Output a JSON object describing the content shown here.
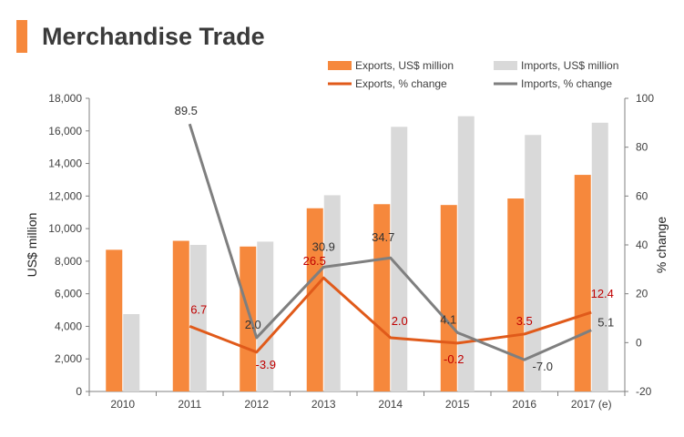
{
  "page": {
    "title": "Merchandise Trade"
  },
  "colors": {
    "accent": "#f6883c",
    "exports_bar": "#f6883c",
    "imports_bar": "#d9d9d9",
    "exports_line": "#e05a1a",
    "imports_line": "#7f7f7f",
    "exports_label": "#c00000",
    "axis": "#808080"
  },
  "chart_data": {
    "type": "bar",
    "title": "",
    "categories": [
      "2010",
      "2011",
      "2012",
      "2013",
      "2014",
      "2015",
      "2016",
      "2017 (e)"
    ],
    "ylabel": "US$ million",
    "ylim": [
      0,
      18000
    ],
    "yticks": [
      0,
      2000,
      4000,
      6000,
      8000,
      10000,
      12000,
      14000,
      16000,
      18000
    ],
    "ytick_labels": [
      "0",
      "2,000",
      "4,000",
      "6,000",
      "8,000",
      "10,000",
      "12,000",
      "14,000",
      "16,000",
      "18,000"
    ],
    "y2label": "% change",
    "y2lim": [
      -20,
      100
    ],
    "y2ticks": [
      -20,
      0,
      20,
      40,
      60,
      80,
      100
    ],
    "y2tick_labels": [
      "-20",
      "0",
      "20",
      "40",
      "60",
      "80",
      "100"
    ],
    "grid": false,
    "legend_position": "top-right",
    "series": [
      {
        "name": "Exports, US$ million",
        "type": "bar",
        "axis": "left",
        "values": [
          8700,
          9250,
          8900,
          11250,
          11500,
          11450,
          11850,
          13300
        ]
      },
      {
        "name": "Imports, US$ million",
        "type": "bar",
        "axis": "left",
        "values": [
          4750,
          9000,
          9200,
          12050,
          16250,
          16900,
          15750,
          16500
        ]
      },
      {
        "name": "Exports, % change",
        "type": "line",
        "axis": "right",
        "values": [
          null,
          6.7,
          -3.9,
          26.5,
          2.0,
          -0.2,
          3.5,
          12.4
        ],
        "labels": [
          null,
          "6.7",
          "-3.9",
          "26.5",
          "2.0",
          "-0.2",
          "3.5",
          "12.4"
        ]
      },
      {
        "name": "Imports, % change",
        "type": "line",
        "axis": "right",
        "values": [
          null,
          89.5,
          2.0,
          30.9,
          34.7,
          4.1,
          -7.0,
          5.1
        ],
        "labels": [
          null,
          "89.5",
          "2.0",
          "30.9",
          "34.7",
          "4.1",
          "-7.0",
          "5.1"
        ]
      }
    ]
  }
}
